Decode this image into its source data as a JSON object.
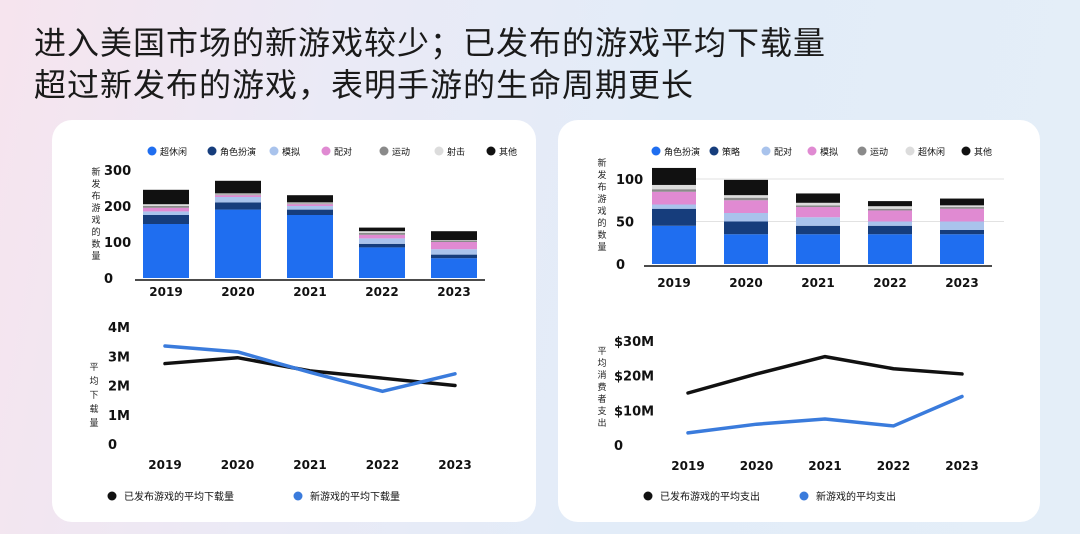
{
  "title_line1": "进入美国市场的新游戏较少；已发布的游戏平均下载量",
  "title_line2": "超过新发布的游戏，表明手游的生命周期更长",
  "colors": {
    "blue": "#1f6ef0",
    "navy": "#163d7c",
    "lightblue": "#a9c3ec",
    "pink": "#e08ad2",
    "gray": "#8a8a8a",
    "lightgray": "#dcdcdc",
    "black": "#111111",
    "line_blue": "#3a7bdc"
  },
  "chart_data": [
    {
      "type": "bar",
      "stacked": true,
      "ylabel": "新发布游戏的数量",
      "categories": [
        "2019",
        "2020",
        "2021",
        "2022",
        "2023"
      ],
      "ylim": [
        0,
        300
      ],
      "yticks": [
        "0",
        "100",
        "200",
        "300"
      ],
      "series": [
        {
          "name": "超休闲",
          "color": "#1f6ef0",
          "values": [
            150,
            190,
            175,
            85,
            55
          ]
        },
        {
          "name": "角色扮演",
          "color": "#163d7c",
          "values": [
            25,
            20,
            15,
            10,
            10
          ]
        },
        {
          "name": "模拟",
          "color": "#a9c3ec",
          "values": [
            10,
            15,
            10,
            15,
            15
          ]
        },
        {
          "name": "配对",
          "color": "#e08ad2",
          "values": [
            10,
            5,
            5,
            10,
            20
          ]
        },
        {
          "name": "运动",
          "color": "#8a8a8a",
          "values": [
            5,
            2,
            2,
            5,
            3
          ]
        },
        {
          "name": "射击",
          "color": "#dcdcdc",
          "values": [
            5,
            3,
            3,
            5,
            2
          ]
        },
        {
          "name": "其他",
          "color": "#111111",
          "values": [
            40,
            35,
            20,
            10,
            25
          ]
        }
      ]
    },
    {
      "type": "line",
      "ylabel": "平均下载量",
      "x": [
        "2019",
        "2020",
        "2021",
        "2022",
        "2023"
      ],
      "ylim": [
        0,
        4000000
      ],
      "yticks": [
        "0",
        "1M",
        "2M",
        "3M",
        "4M"
      ],
      "series": [
        {
          "name": "已发布游戏的平均下载量",
          "color": "#111111",
          "values": [
            2750000,
            2950000,
            2500000,
            2250000,
            2000000
          ]
        },
        {
          "name": "新游戏的平均下载量",
          "color": "#3a7bdc",
          "values": [
            3350000,
            3150000,
            2450000,
            1800000,
            2400000
          ]
        }
      ]
    },
    {
      "type": "bar",
      "stacked": true,
      "ylabel": "新发布游戏的数量",
      "categories": [
        "2019",
        "2020",
        "2021",
        "2022",
        "2023"
      ],
      "ylim": [
        0,
        120
      ],
      "yticks": [
        "0",
        "50",
        "100"
      ],
      "series": [
        {
          "name": "角色扮演",
          "color": "#1f6ef0",
          "values": [
            45,
            35,
            35,
            35,
            35
          ]
        },
        {
          "name": "策略",
          "color": "#163d7c",
          "values": [
            20,
            15,
            10,
            10,
            5
          ]
        },
        {
          "name": "配对",
          "color": "#a9c3ec",
          "values": [
            5,
            10,
            10,
            5,
            10
          ]
        },
        {
          "name": "模拟",
          "color": "#e08ad2",
          "values": [
            15,
            15,
            12,
            13,
            15
          ]
        },
        {
          "name": "运动",
          "color": "#8a8a8a",
          "values": [
            3,
            3,
            2,
            2,
            2
          ]
        },
        {
          "name": "超休闲",
          "color": "#dcdcdc",
          "values": [
            5,
            3,
            3,
            3,
            2
          ]
        },
        {
          "name": "其他",
          "color": "#111111",
          "values": [
            20,
            18,
            11,
            6,
            8
          ]
        }
      ]
    },
    {
      "type": "line",
      "ylabel": "平均消费者支出",
      "x": [
        "2019",
        "2020",
        "2021",
        "2022",
        "2023"
      ],
      "ylim": [
        0,
        30000000
      ],
      "yticks": [
        "0",
        "$10M",
        "$20M",
        "$30M"
      ],
      "series": [
        {
          "name": "已发布游戏的平均支出",
          "color": "#111111",
          "values": [
            15000000,
            20500000,
            25500000,
            22000000,
            20500000
          ]
        },
        {
          "name": "新游戏的平均支出",
          "color": "#3a7bdc",
          "values": [
            3500000,
            6000000,
            7500000,
            5500000,
            14000000
          ]
        }
      ]
    }
  ]
}
